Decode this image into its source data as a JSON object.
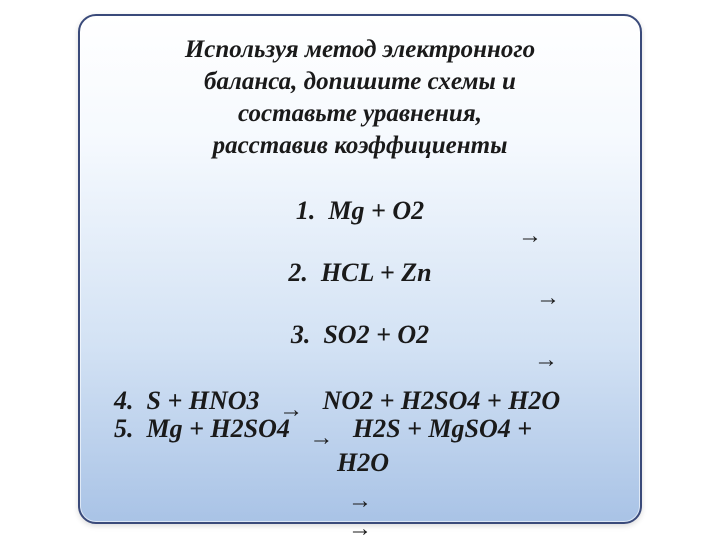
{
  "panel": {
    "background_top": "#ffffff",
    "background_mid": "#d3e2f4",
    "background_bottom": "#a9c3e6",
    "border_color": "#3a4a7a",
    "border_radius": 18
  },
  "intro": {
    "line1": "Используя метод электронного",
    "line2": "баланса, допишите схемы и",
    "line3": "составьте уравнения,",
    "line4": "расставив коэффициенты",
    "font_size": 25,
    "font_style": "italic",
    "font_weight": 600,
    "color": "#1a1a1a",
    "align": "center"
  },
  "arrows": {
    "glyph": "→",
    "bottom1": "→",
    "bottom2": "→"
  },
  "equations": {
    "font_size": 26,
    "font_style": "italic",
    "font_weight": 600,
    "color": "#1a1a1a",
    "items": [
      {
        "n": "1.",
        "lhs": "Mg + O2",
        "rhs": ""
      },
      {
        "n": "2.",
        "lhs": "HCL + Zn",
        "rhs": ""
      },
      {
        "n": "3.",
        "lhs": "SO2 + O2",
        "rhs": ""
      },
      {
        "n": "4.",
        "lhs": "S + HNO3",
        "rhs": "NO2 + H2SO4 + H2O"
      },
      {
        "n": "5.",
        "lhs": "Mg + H2SO4",
        "rhs": "H2S + MgSO4 +",
        "rhs2": "H2O"
      }
    ]
  }
}
